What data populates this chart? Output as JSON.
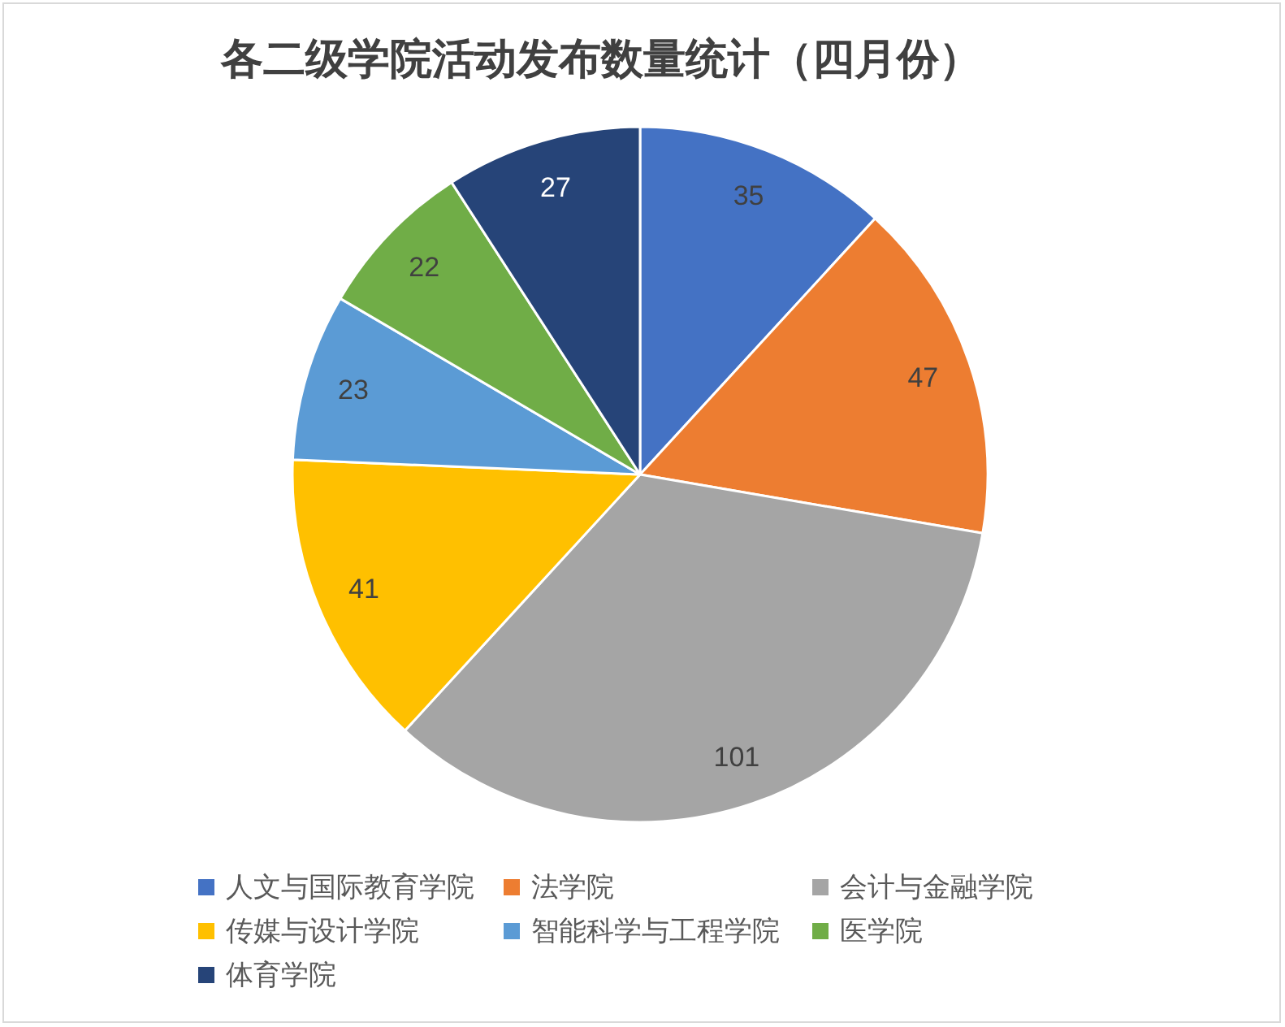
{
  "chart_data": {
    "type": "pie",
    "title": "各二级学院活动发布数量统计（四月份）",
    "categories": [
      "人文与国际教育学院",
      "法学院",
      "会计与金融学院",
      "传媒与设计学院",
      "智能科学与工程学院",
      "医学院",
      "体育学院"
    ],
    "values": [
      35,
      47,
      101,
      41,
      23,
      22,
      27
    ],
    "colors": [
      "#4472c4",
      "#ed7d31",
      "#a5a5a5",
      "#ffc000",
      "#5b9bd5",
      "#70ad47",
      "#264478"
    ],
    "data_labels": true,
    "legend": "bottom"
  }
}
